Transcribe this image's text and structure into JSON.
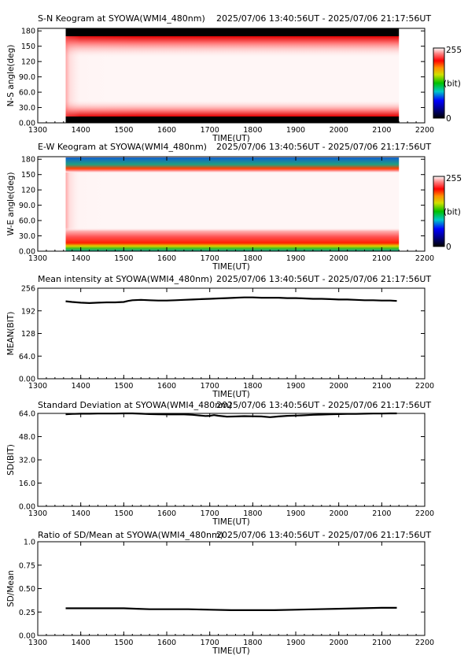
{
  "charts": [
    {
      "id": "sn",
      "type": "heatmap",
      "title": "S-N Keogram at SYOWA(WMI4_480nm)",
      "range_label": "2025/07/06 13:40:56UT - 2025/07/06 21:17:56UT",
      "ylabel": "N-S angle(deg)",
      "xlabel": "TIME(UT)",
      "xlim": [
        1300,
        2200
      ],
      "ylim": [
        0,
        185
      ],
      "xticks": [
        "1300",
        "1400",
        "1500",
        "1600",
        "1700",
        "1800",
        "1900",
        "2000",
        "2100",
        "2200"
      ],
      "yticks": [
        {
          "v": 0,
          "t": "0.00"
        },
        {
          "v": 30,
          "t": "30.0"
        },
        {
          "v": 60,
          "t": "60.0"
        },
        {
          "v": 90,
          "t": "90.0"
        },
        {
          "v": 120,
          "t": "120"
        },
        {
          "v": 150,
          "t": "150"
        },
        {
          "v": 180,
          "t": "180"
        }
      ],
      "data_xrange": [
        1365,
        2140
      ],
      "colorbar": {
        "max": "255",
        "unit": "(bit)",
        "min": "0"
      }
    },
    {
      "id": "ew",
      "type": "heatmap",
      "title": "E-W Keogram at SYOWA(WMI4_480nm)",
      "range_label": "2025/07/06 13:40:56UT - 2025/07/06 21:17:56UT",
      "ylabel": "W-E angle(deg)",
      "xlabel": "TIME(UT)",
      "xlim": [
        1300,
        2200
      ],
      "ylim": [
        0,
        185
      ],
      "xticks": [
        "1300",
        "1400",
        "1500",
        "1600",
        "1700",
        "1800",
        "1900",
        "2000",
        "2100",
        "2200"
      ],
      "yticks": [
        {
          "v": 0,
          "t": "0.00"
        },
        {
          "v": 30,
          "t": "30.0"
        },
        {
          "v": 60,
          "t": "60.0"
        },
        {
          "v": 90,
          "t": "90.0"
        },
        {
          "v": 120,
          "t": "120"
        },
        {
          "v": 150,
          "t": "150"
        },
        {
          "v": 180,
          "t": "180"
        }
      ],
      "data_xrange": [
        1365,
        2140
      ],
      "colorbar": {
        "max": "255",
        "unit": "(bit)",
        "min": "0"
      }
    },
    {
      "id": "mean",
      "type": "line",
      "title": "Mean intensity at SYOWA(WMI4_480nm)",
      "range_label": "2025/07/06 13:40:56UT - 2025/07/06 21:17:56UT",
      "ylabel": "MEAN(BIT)",
      "xlabel": "TIME(UT)",
      "xlim": [
        1300,
        2200
      ],
      "ylim": [
        0,
        256
      ],
      "xticks": [
        "1300",
        "1400",
        "1500",
        "1600",
        "1700",
        "1800",
        "1900",
        "2000",
        "2100",
        "2200"
      ],
      "yticks": [
        {
          "v": 0,
          "t": "0.00"
        },
        {
          "v": 64,
          "t": "64.0"
        },
        {
          "v": 128,
          "t": "128"
        },
        {
          "v": 192,
          "t": "192"
        },
        {
          "v": 256,
          "t": "256"
        }
      ],
      "x": [
        1365,
        1380,
        1400,
        1420,
        1440,
        1460,
        1480,
        1500,
        1510,
        1520,
        1540,
        1560,
        1580,
        1600,
        1620,
        1640,
        1660,
        1680,
        1700,
        1720,
        1740,
        1760,
        1780,
        1800,
        1820,
        1840,
        1860,
        1880,
        1900,
        1920,
        1940,
        1960,
        1980,
        2000,
        2020,
        2040,
        2060,
        2080,
        2100,
        2120,
        2135
      ],
      "y": [
        219,
        217,
        215,
        214,
        215,
        216,
        216,
        217,
        220,
        222,
        223,
        222,
        221,
        221,
        222,
        223,
        224,
        225,
        226,
        227,
        228,
        229,
        230,
        230,
        229,
        229,
        229,
        228,
        228,
        227,
        226,
        226,
        225,
        224,
        224,
        223,
        222,
        222,
        221,
        221,
        220
      ]
    },
    {
      "id": "sd",
      "type": "line",
      "title": "Standard Deviation at SYOWA(WMI4_480nm)",
      "range_label": "2025/07/06 13:40:56UT - 2025/07/06 21:17:56UT",
      "ylabel": "SD(BIT)",
      "xlabel": "TIME(UT)",
      "xlim": [
        1300,
        2200
      ],
      "ylim": [
        0,
        64
      ],
      "xticks": [
        "1300",
        "1400",
        "1500",
        "1600",
        "1700",
        "1800",
        "1900",
        "2000",
        "2100",
        "2200"
      ],
      "yticks": [
        {
          "v": 0,
          "t": "0.00"
        },
        {
          "v": 16,
          "t": "16.0"
        },
        {
          "v": 32,
          "t": "32.0"
        },
        {
          "v": 48,
          "t": "48.0"
        },
        {
          "v": 64,
          "t": "64.0"
        }
      ],
      "x": [
        1365,
        1380,
        1400,
        1420,
        1440,
        1460,
        1480,
        1500,
        1520,
        1540,
        1560,
        1580,
        1600,
        1620,
        1640,
        1660,
        1680,
        1690,
        1700,
        1710,
        1720,
        1740,
        1760,
        1780,
        1800,
        1820,
        1840,
        1850,
        1860,
        1880,
        1900,
        1920,
        1940,
        1960,
        1980,
        2000,
        2020,
        2040,
        2060,
        2080,
        2100,
        2120,
        2135
      ],
      "y": [
        63.4,
        63.6,
        63.8,
        63.8,
        63.9,
        63.9,
        63.9,
        64.0,
        64.0,
        63.8,
        63.5,
        63.4,
        63.3,
        63.3,
        63.3,
        63.0,
        62.5,
        62.2,
        62.3,
        62.8,
        62.4,
        61.8,
        61.9,
        62.1,
        62.0,
        61.9,
        61.4,
        61.6,
        61.9,
        62.3,
        62.5,
        62.7,
        63.0,
        63.2,
        63.4,
        63.5,
        63.6,
        63.7,
        63.8,
        63.9,
        63.9,
        64.0,
        64.0
      ]
    },
    {
      "id": "ratio",
      "type": "line",
      "title": "Ratio of SD/Mean at SYOWA(WMI4_480nm)",
      "range_label": "2025/07/06 13:40:56UT - 2025/07/06 21:17:56UT",
      "ylabel": "SD/Mean",
      "xlabel": "TIME(UT)",
      "xlim": [
        1300,
        2200
      ],
      "ylim": [
        0,
        1
      ],
      "xticks": [
        "1300",
        "1400",
        "1500",
        "1600",
        "1700",
        "1800",
        "1900",
        "2000",
        "2100",
        "2200"
      ],
      "yticks": [
        {
          "v": 0,
          "t": "0.00"
        },
        {
          "v": 0.25,
          "t": "0.25"
        },
        {
          "v": 0.5,
          "t": "0.50"
        },
        {
          "v": 0.75,
          "t": "0.75"
        },
        {
          "v": 1,
          "t": "1.0"
        }
      ],
      "x": [
        1365,
        1400,
        1450,
        1500,
        1530,
        1560,
        1600,
        1650,
        1700,
        1750,
        1800,
        1850,
        1900,
        1950,
        2000,
        2050,
        2100,
        2135
      ],
      "y": [
        0.29,
        0.29,
        0.29,
        0.29,
        0.285,
        0.28,
        0.28,
        0.28,
        0.275,
        0.27,
        0.27,
        0.27,
        0.275,
        0.28,
        0.285,
        0.29,
        0.295,
        0.295
      ]
    }
  ]
}
